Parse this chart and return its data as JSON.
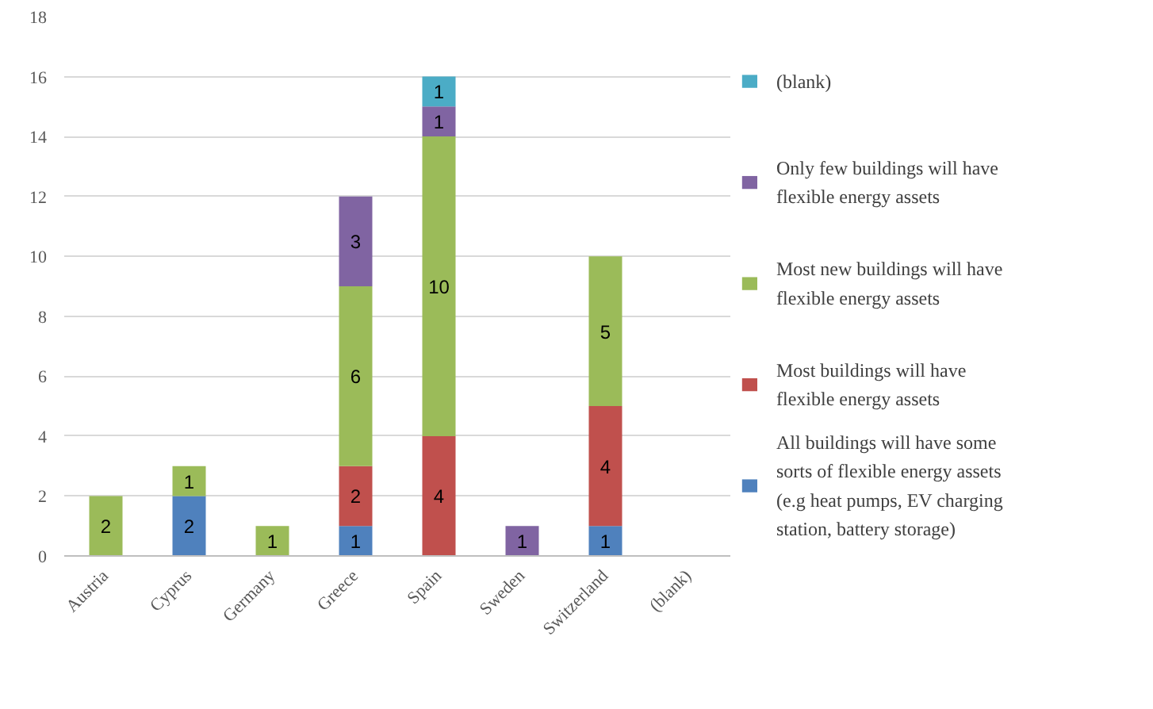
{
  "chart_data": {
    "type": "bar",
    "stacked": true,
    "categories": [
      "Austria",
      "Cyprus",
      "Germany",
      "Greece",
      "Spain",
      "Sweden",
      "Switzerland",
      "(blank)"
    ],
    "series": [
      {
        "name": "All buildings will have some sorts of flexible energy assets (e.g heat pumps, EV charging station, battery storage)",
        "color": "#4f81bd",
        "values": [
          null,
          2,
          null,
          1,
          null,
          null,
          1,
          null
        ]
      },
      {
        "name": "Most buildings will have flexible energy assets",
        "color": "#c0504d",
        "values": [
          null,
          null,
          null,
          2,
          4,
          null,
          4,
          null
        ]
      },
      {
        "name": "Most new buildings will have flexible energy assets",
        "color": "#9bbb59",
        "values": [
          2,
          1,
          1,
          6,
          10,
          null,
          5,
          null
        ]
      },
      {
        "name": "Only few buildings will have flexible energy assets",
        "color": "#8064a2",
        "values": [
          null,
          null,
          null,
          3,
          1,
          1,
          null,
          null
        ]
      },
      {
        "name": "(blank)",
        "color": "#4bacc6",
        "values": [
          null,
          null,
          null,
          null,
          1,
          null,
          null,
          null
        ]
      }
    ],
    "ylim": [
      0,
      18
    ],
    "yticks": [
      0,
      2,
      4,
      6,
      8,
      10,
      12,
      14,
      16,
      18
    ],
    "grid": "y",
    "legend": "right",
    "data_labels": true
  }
}
